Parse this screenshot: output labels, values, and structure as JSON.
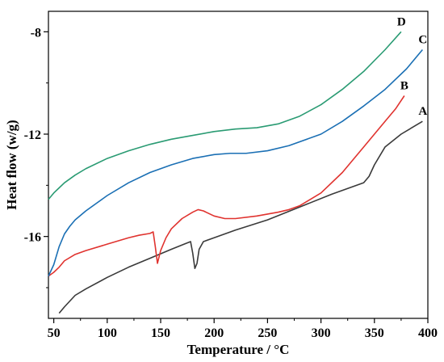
{
  "chart_data": {
    "type": "line",
    "xlabel": "Temperature / °C",
    "ylabel": "Heat flow (w/g)",
    "xlim": [
      45,
      400
    ],
    "ylim": [
      -19.2,
      -7.2
    ],
    "xticks": [
      50,
      100,
      150,
      200,
      250,
      300,
      350,
      400
    ],
    "yticks": [
      -8,
      -12,
      -16
    ],
    "grid": false,
    "series": [
      {
        "name": "A",
        "color": "#3a3a3a",
        "x": [
          55,
          60,
          70,
          80,
          100,
          120,
          140,
          160,
          172,
          178,
          180,
          182,
          184,
          186,
          190,
          200,
          220,
          250,
          280,
          310,
          330,
          340,
          345,
          350,
          360,
          375,
          395
        ],
        "y": [
          -19.0,
          -18.75,
          -18.3,
          -18.05,
          -17.6,
          -17.2,
          -16.85,
          -16.5,
          -16.3,
          -16.2,
          -16.65,
          -17.25,
          -17.05,
          -16.5,
          -16.2,
          -16.05,
          -15.75,
          -15.35,
          -14.85,
          -14.35,
          -14.05,
          -13.9,
          -13.65,
          -13.2,
          -12.5,
          -12.0,
          -11.5
        ]
      },
      {
        "name": "B",
        "color": "#e0332f",
        "x": [
          45,
          50,
          55,
          60,
          70,
          80,
          100,
          120,
          130,
          140,
          143,
          145,
          147,
          150,
          155,
          160,
          170,
          180,
          185,
          190,
          200,
          210,
          220,
          240,
          260,
          270,
          280,
          300,
          320,
          340,
          360,
          370,
          378
        ],
        "y": [
          -17.55,
          -17.4,
          -17.2,
          -16.95,
          -16.7,
          -16.55,
          -16.3,
          -16.05,
          -15.95,
          -15.88,
          -15.82,
          -16.4,
          -17.05,
          -16.55,
          -16.05,
          -15.7,
          -15.3,
          -15.05,
          -14.95,
          -15.0,
          -15.2,
          -15.3,
          -15.3,
          -15.2,
          -15.05,
          -14.95,
          -14.8,
          -14.3,
          -13.5,
          -12.5,
          -11.5,
          -11.0,
          -10.5
        ]
      },
      {
        "name": "C",
        "color": "#1a6fb4",
        "x": [
          45,
          50,
          55,
          60,
          65,
          70,
          80,
          90,
          100,
          120,
          140,
          160,
          180,
          200,
          215,
          230,
          250,
          270,
          300,
          320,
          340,
          360,
          380,
          395
        ],
        "y": [
          -17.55,
          -17.1,
          -16.4,
          -15.9,
          -15.6,
          -15.35,
          -15.0,
          -14.7,
          -14.4,
          -13.9,
          -13.5,
          -13.2,
          -12.95,
          -12.8,
          -12.75,
          -12.75,
          -12.65,
          -12.45,
          -12.0,
          -11.5,
          -10.9,
          -10.25,
          -9.45,
          -8.7
        ]
      },
      {
        "name": "D",
        "color": "#2a9b73",
        "x": [
          45,
          50,
          55,
          60,
          70,
          80,
          100,
          120,
          140,
          160,
          180,
          200,
          220,
          240,
          260,
          280,
          300,
          320,
          340,
          360,
          375
        ],
        "y": [
          -14.55,
          -14.3,
          -14.1,
          -13.9,
          -13.6,
          -13.35,
          -12.95,
          -12.65,
          -12.4,
          -12.2,
          -12.05,
          -11.9,
          -11.8,
          -11.75,
          -11.6,
          -11.3,
          -10.85,
          -10.25,
          -9.55,
          -8.7,
          -8.0
        ]
      }
    ]
  }
}
